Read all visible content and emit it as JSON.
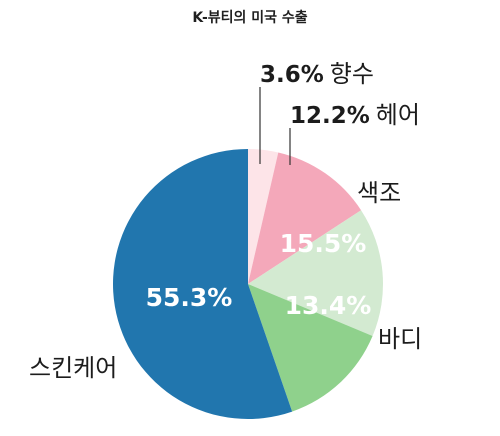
{
  "chart_data": {
    "type": "pie",
    "title": "K-뷰티의 미국 수출",
    "unit": "%",
    "slices": [
      {
        "label": "향수",
        "value": 3.6,
        "value_label": "3.6%",
        "color": "#fde4e8"
      },
      {
        "label": "헤어",
        "value": 12.2,
        "value_label": "12.2%",
        "color": "#f4a8ba"
      },
      {
        "label": "색조",
        "value": 15.5,
        "value_label": "15.5%",
        "color": "#d3ead1"
      },
      {
        "label": "바디",
        "value": 13.4,
        "value_label": "13.4%",
        "color": "#8fd18c"
      },
      {
        "label": "스킨케어",
        "value": 55.3,
        "value_label": "55.3%",
        "color": "#2176ae"
      }
    ]
  }
}
